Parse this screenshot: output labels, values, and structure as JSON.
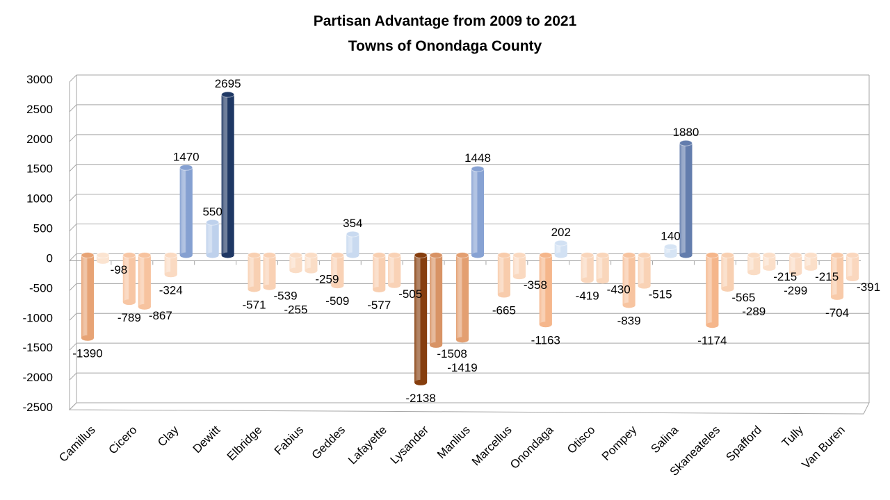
{
  "chart_data": {
    "type": "bar",
    "style": "3d-cylinder-clustered",
    "title": "Partisan Advantage from 2009 to 2021",
    "subtitle": "Towns of Onondaga County",
    "xlabel": "",
    "ylabel": "",
    "ylim": [
      -2500,
      3000
    ],
    "yticks": [
      3000,
      2500,
      2000,
      1500,
      1000,
      500,
      0,
      -500,
      -1000,
      -1500,
      -2000,
      -2500
    ],
    "grid": true,
    "legend": "none",
    "colors": {
      "positive": "#2f5597",
      "negative": "#c55a11",
      "grid": "#a6a6a6"
    },
    "categories": [
      "Camillus",
      "Cicero",
      "Clay",
      "Dewitt",
      "Elbridge",
      "Fabius",
      "Geddes",
      "Lafayette",
      "Lysander",
      "Manlius",
      "Marcellus",
      "Onondaga",
      "Otisco",
      "Pompey",
      "Salina",
      "Skaneateles",
      "Spafford",
      "Tully",
      "Van Buren"
    ],
    "series": [
      {
        "values": [
          -1390,
          -789,
          -324,
          550,
          -571,
          -255,
          -509,
          -577,
          -2138,
          -1419,
          -665,
          -1163,
          -419,
          -839,
          140,
          -1174,
          -289,
          -299,
          -704
        ]
      },
      {
        "values": [
          -98,
          -867,
          1470,
          2695,
          -539,
          -259,
          354,
          -505,
          -1508,
          1448,
          -358,
          202,
          -430,
          -515,
          1880,
          -565,
          -215,
          -215,
          -391
        ]
      }
    ]
  }
}
